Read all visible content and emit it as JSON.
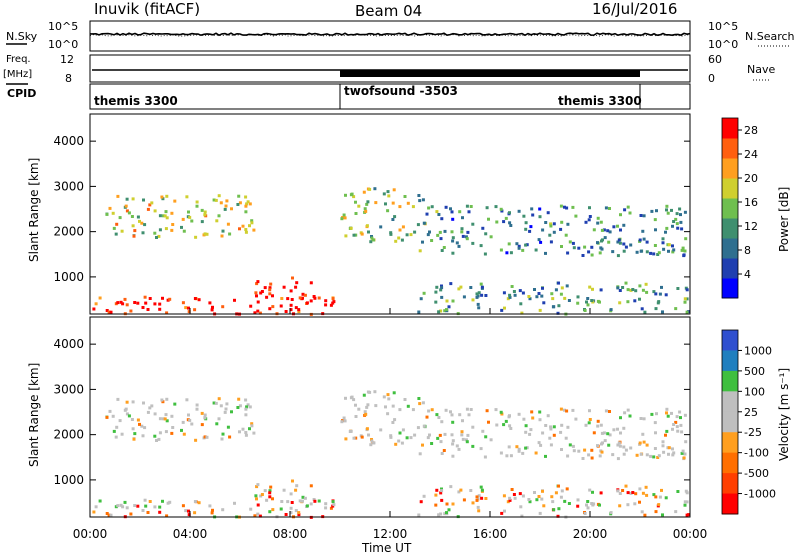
{
  "header": {
    "station": "Inuvik (fitACF)",
    "beam": "Beam 04",
    "date": "16/Jul/2016"
  },
  "colors": {
    "power": [
      "#0000ff",
      "#1f3fb0",
      "#2f6f8f",
      "#3f8f6f",
      "#6fbf4f",
      "#cfcf2f",
      "#ff9f1f",
      "#ff5f0f",
      "#ff0000"
    ],
    "velocity": [
      "#ff0000",
      "#ff6f00",
      "#ff9f1f",
      "#bfbfbf",
      "#bfbfbf",
      "#3fbf3f",
      "#1f7fbf",
      "#2f4fcf"
    ],
    "ground_scatter": "#c0c0c0"
  },
  "chart_data": [
    {
      "type": "line",
      "name": "noise-panel",
      "left_labels": [
        "N.Sky",
        "10^5",
        "10^0"
      ],
      "right_labels": [
        "10^5",
        "10^0",
        "N.Search"
      ],
      "x": [
        "00:00",
        "24:00"
      ],
      "note_values": {
        "sky_log10": 2.8,
        "search_log10": 2.6
      },
      "ylim": [
        0,
        5
      ]
    },
    {
      "type": "line",
      "name": "freq-nave-panel",
      "left_labels": [
        "Freq.",
        "[MHz]",
        "12",
        "8"
      ],
      "right_labels": [
        "60",
        "0",
        "Nave"
      ],
      "ylim_freq": [
        8,
        12
      ],
      "ylim_nave": [
        0,
        60
      ],
      "freq_mhz": 11.0,
      "nave_high_period": [
        "10:00",
        "22:00"
      ]
    },
    {
      "type": "table",
      "name": "cpid-panel",
      "label": "CPID",
      "segments": [
        {
          "text": "themis 3300",
          "start_h": 0,
          "end_h": 10
        },
        {
          "text": "twofsound -3503",
          "start_h": 10,
          "end_h": 22
        },
        {
          "text": "themis 3300",
          "start_h": 22,
          "end_h": 24
        }
      ]
    },
    {
      "type": "heatmap",
      "name": "power-panel",
      "ylabel": "Slant Range [km]",
      "yticks": [
        "1000",
        "2000",
        "3000",
        "4000"
      ],
      "ylim": [
        180,
        4600
      ],
      "colorbar_label": "Power [dB]",
      "colorbar_ticks": [
        "4",
        "8",
        "12",
        "16",
        "20",
        "24",
        "28"
      ],
      "clim": [
        0,
        30
      ],
      "scatter_regions": [
        {
          "t0": 0.0,
          "t1": 10.0,
          "r0": 200,
          "r1": 600,
          "level": 28
        },
        {
          "t0": 6.5,
          "t1": 8.8,
          "r0": 200,
          "r1": 1100,
          "level": 30
        },
        {
          "t0": 0.6,
          "t1": 6.5,
          "r0": 1900,
          "r1": 2900,
          "level": 18
        },
        {
          "t0": 10.0,
          "t1": 13.5,
          "r0": 1800,
          "r1": 3000,
          "level": 16
        },
        {
          "t0": 13.0,
          "t1": 24.0,
          "r0": 200,
          "r1": 900,
          "level": 12
        },
        {
          "t0": 13.0,
          "t1": 24.0,
          "r0": 1500,
          "r1": 2600,
          "level": 10
        }
      ]
    },
    {
      "type": "heatmap",
      "name": "velocity-panel",
      "ylabel": "Slant Range [km]",
      "yticks": [
        "1000",
        "2000",
        "3000",
        "4000"
      ],
      "ylim": [
        180,
        4600
      ],
      "colorbar_label": "Velocity [m s⁻¹]",
      "colorbar_ticks": [
        "1000",
        "500",
        "100",
        "25",
        "-25",
        "-100",
        "-500",
        "-1000"
      ],
      "xlabel": "Time UT",
      "xticks": [
        "00:00",
        "04:00",
        "08:00",
        "12:00",
        "16:00",
        "20:00",
        "00:00"
      ],
      "xlim": [
        0,
        24
      ]
    }
  ]
}
